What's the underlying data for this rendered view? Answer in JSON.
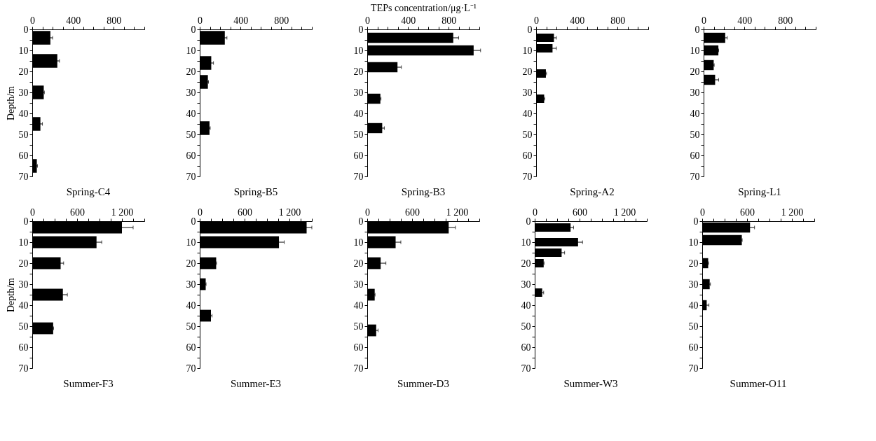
{
  "chart_data": [
    {
      "type": "bar",
      "orientation": "horizontal",
      "title": "Spring-C4",
      "ylabel": "Depth/m",
      "color": "#000000",
      "x": [
        4,
        15,
        30,
        45,
        65
      ],
      "values": [
        178,
        246,
        113,
        80,
        45
      ],
      "errors": [
        22,
        21,
        6,
        20,
        6
      ],
      "xlim": [
        0,
        1100
      ],
      "xticks": [
        0,
        {
          "value": 100,
          "label": null
        },
        {
          "value": 200,
          "label": null
        },
        {
          "value": 300,
          "label": null
        },
        400,
        {
          "value": 500,
          "label": null
        },
        {
          "value": 600,
          "label": null
        },
        {
          "value": 700,
          "label": null
        },
        800,
        {
          "value": 900,
          "label": null
        },
        {
          "value": 1000,
          "label": null
        },
        {
          "value": 1100,
          "label": null
        }
      ],
      "ylim": [
        70,
        0
      ],
      "yticks": [
        0,
        {
          "value": 5,
          "label": null
        },
        10,
        {
          "value": 15,
          "label": null
        },
        20,
        {
          "value": 25,
          "label": null
        },
        30,
        {
          "value": 35,
          "label": null
        },
        40,
        {
          "value": 45,
          "label": null
        },
        50,
        {
          "value": 55,
          "label": null
        },
        60,
        {
          "value": 65,
          "label": null
        },
        70
      ]
    },
    {
      "type": "bar",
      "orientation": "horizontal",
      "title": "Spring-B5",
      "color": "#000000",
      "x": [
        4,
        16,
        25,
        47
      ],
      "values": [
        246,
        113,
        80,
        96
      ],
      "errors": [
        21,
        22,
        6,
        7
      ],
      "xlim": [
        0,
        1100
      ],
      "xticks": [
        0,
        {
          "value": 100,
          "label": null
        },
        {
          "value": 200,
          "label": null
        },
        {
          "value": 300,
          "label": null
        },
        400,
        {
          "value": 500,
          "label": null
        },
        {
          "value": 600,
          "label": null
        },
        {
          "value": 700,
          "label": null
        },
        800,
        {
          "value": 900,
          "label": null
        },
        {
          "value": 1000,
          "label": null
        },
        {
          "value": 1100,
          "label": null
        }
      ],
      "ylim": [
        70,
        0
      ],
      "yticks": [
        0,
        {
          "value": 5,
          "label": null
        },
        10,
        {
          "value": 15,
          "label": null
        },
        20,
        {
          "value": 25,
          "label": null
        },
        30,
        {
          "value": 35,
          "label": null
        },
        40,
        {
          "value": 45,
          "label": null
        },
        50,
        {
          "value": 55,
          "label": null
        },
        60,
        {
          "value": 65,
          "label": null
        },
        70
      ]
    },
    {
      "type": "bar",
      "orientation": "horizontal",
      "title": "Spring-B3",
      "xlabel": "TEPs concentration/μg·L⁻¹",
      "color": "#000000",
      "x": [
        4,
        10,
        18,
        33,
        47
      ],
      "values": [
        844,
        1044,
        297,
        129,
        147
      ],
      "errors": [
        53,
        68,
        38,
        6,
        21
      ],
      "xlim": [
        0,
        1100
      ],
      "xticks": [
        0,
        {
          "value": 100,
          "label": null
        },
        {
          "value": 200,
          "label": null
        },
        {
          "value": 300,
          "label": null
        },
        400,
        {
          "value": 500,
          "label": null
        },
        {
          "value": 600,
          "label": null
        },
        {
          "value": 700,
          "label": null
        },
        800,
        {
          "value": 900,
          "label": null
        },
        {
          "value": 1000,
          "label": null
        },
        {
          "value": 1100,
          "label": null
        }
      ],
      "ylim": [
        70,
        0
      ],
      "yticks": [
        0,
        {
          "value": 5,
          "label": null
        },
        10,
        {
          "value": 15,
          "label": null
        },
        20,
        {
          "value": 25,
          "label": null
        },
        30,
        {
          "value": 35,
          "label": null
        },
        40,
        {
          "value": 45,
          "label": null
        },
        50,
        {
          "value": 55,
          "label": null
        },
        60,
        {
          "value": 65,
          "label": null
        },
        70
      ]
    },
    {
      "type": "bar",
      "orientation": "horizontal",
      "title": "Spring-A2",
      "color": "#000000",
      "x": [
        4,
        9,
        21,
        33
      ],
      "values": [
        175,
        161,
        96,
        79
      ],
      "errors": [
        24,
        38,
        6,
        6
      ],
      "xlim": [
        0,
        1100
      ],
      "xticks": [
        0,
        {
          "value": 100,
          "label": null
        },
        {
          "value": 200,
          "label": null
        },
        {
          "value": 300,
          "label": null
        },
        400,
        {
          "value": 500,
          "label": null
        },
        {
          "value": 600,
          "label": null
        },
        {
          "value": 700,
          "label": null
        },
        800,
        {
          "value": 900,
          "label": null
        },
        {
          "value": 1000,
          "label": null
        },
        {
          "value": 1100,
          "label": null
        }
      ],
      "ylim": [
        70,
        0
      ],
      "yticks": [
        0,
        {
          "value": 5,
          "label": null
        },
        10,
        {
          "value": 15,
          "label": null
        },
        20,
        {
          "value": 25,
          "label": null
        },
        30,
        {
          "value": 35,
          "label": null
        },
        40,
        {
          "value": 45,
          "label": null
        },
        50,
        {
          "value": 55,
          "label": null
        },
        60,
        {
          "value": 65,
          "label": null
        },
        70
      ]
    },
    {
      "type": "bar",
      "orientation": "horizontal",
      "title": "Spring-L1",
      "color": "#000000",
      "x": [
        4,
        10,
        17,
        24
      ],
      "values": [
        212,
        145,
        99,
        113
      ],
      "errors": [
        20,
        3,
        5,
        35
      ],
      "xlim": [
        0,
        1100
      ],
      "xticks": [
        0,
        {
          "value": 100,
          "label": null
        },
        {
          "value": 200,
          "label": null
        },
        {
          "value": 300,
          "label": null
        },
        400,
        {
          "value": 500,
          "label": null
        },
        {
          "value": 600,
          "label": null
        },
        {
          "value": 700,
          "label": null
        },
        800,
        {
          "value": 900,
          "label": null
        },
        {
          "value": 1000,
          "label": null
        },
        {
          "value": 1100,
          "label": null
        }
      ],
      "ylim": [
        70,
        0
      ],
      "yticks": [
        0,
        {
          "value": 5,
          "label": null
        },
        10,
        {
          "value": 15,
          "label": null
        },
        20,
        {
          "value": 25,
          "label": null
        },
        30,
        {
          "value": 35,
          "label": null
        },
        40,
        {
          "value": 45,
          "label": null
        },
        50,
        {
          "value": 55,
          "label": null
        },
        60,
        {
          "value": 65,
          "label": null
        },
        70
      ]
    },
    {
      "type": "bar",
      "orientation": "horizontal",
      "title": "Summer-F3",
      "ylabel": "Depth/m",
      "color": "#000000",
      "x": [
        3,
        10,
        20,
        35,
        51
      ],
      "values": [
        1200,
        860,
        380,
        410,
        280
      ],
      "errors": [
        150,
        70,
        40,
        60,
        5
      ],
      "xlim": [
        0,
        1500
      ],
      "xticks": [
        0,
        {
          "value": 150,
          "label": null
        },
        {
          "value": 300,
          "label": null
        },
        {
          "value": 450,
          "label": null
        },
        600,
        {
          "value": 750,
          "label": null
        },
        {
          "value": 900,
          "label": null
        },
        {
          "value": 1050,
          "label": null
        },
        {
          "value": 1200,
          "label": "1 200"
        },
        {
          "value": 1350,
          "label": null
        },
        {
          "value": 1500,
          "label": null
        }
      ],
      "ylim": [
        70,
        0
      ],
      "yticks": [
        0,
        {
          "value": 5,
          "label": null
        },
        10,
        {
          "value": 15,
          "label": null
        },
        20,
        {
          "value": 25,
          "label": null
        },
        30,
        {
          "value": 35,
          "label": null
        },
        40,
        {
          "value": 45,
          "label": null
        },
        50,
        {
          "value": 55,
          "label": null
        },
        60,
        {
          "value": 65,
          "label": null
        },
        70
      ]
    },
    {
      "type": "bar",
      "orientation": "horizontal",
      "title": "Summer-E3",
      "color": "#000000",
      "x": [
        3,
        10,
        20,
        30,
        45
      ],
      "values": [
        1430,
        1060,
        220,
        80,
        150
      ],
      "errors": [
        70,
        70,
        5,
        5,
        15
      ],
      "xlim": [
        0,
        1500
      ],
      "xticks": [
        0,
        {
          "value": 150,
          "label": null
        },
        {
          "value": 300,
          "label": null
        },
        {
          "value": 450,
          "label": null
        },
        600,
        {
          "value": 750,
          "label": null
        },
        {
          "value": 900,
          "label": null
        },
        {
          "value": 1050,
          "label": null
        },
        {
          "value": 1200,
          "label": "1 200"
        },
        {
          "value": 1350,
          "label": null
        },
        {
          "value": 1500,
          "label": null
        }
      ],
      "ylim": [
        70,
        0
      ],
      "yticks": [
        0,
        {
          "value": 5,
          "label": null
        },
        10,
        {
          "value": 15,
          "label": null
        },
        20,
        {
          "value": 25,
          "label": null
        },
        30,
        {
          "value": 35,
          "label": null
        },
        40,
        {
          "value": 45,
          "label": null
        },
        50,
        {
          "value": 55,
          "label": null
        },
        60,
        {
          "value": 65,
          "label": null
        },
        70
      ]
    },
    {
      "type": "bar",
      "orientation": "horizontal",
      "title": "Summer-D3",
      "color": "#000000",
      "x": [
        3,
        10,
        20,
        35,
        52
      ],
      "values": [
        1090,
        380,
        180,
        100,
        120
      ],
      "errors": [
        90,
        70,
        70,
        5,
        25
      ],
      "xlim": [
        0,
        1500
      ],
      "xticks": [
        0,
        {
          "value": 150,
          "label": null
        },
        {
          "value": 300,
          "label": null
        },
        {
          "value": 450,
          "label": null
        },
        600,
        {
          "value": 750,
          "label": null
        },
        {
          "value": 900,
          "label": null
        },
        {
          "value": 1050,
          "label": null
        },
        {
          "value": 1200,
          "label": "1 200"
        },
        {
          "value": 1350,
          "label": null
        },
        {
          "value": 1500,
          "label": null
        }
      ],
      "ylim": [
        70,
        0
      ],
      "yticks": [
        0,
        {
          "value": 5,
          "label": null
        },
        10,
        {
          "value": 15,
          "label": null
        },
        20,
        {
          "value": 25,
          "label": null
        },
        30,
        {
          "value": 35,
          "label": null
        },
        40,
        {
          "value": 45,
          "label": null
        },
        50,
        {
          "value": 55,
          "label": null
        },
        60,
        {
          "value": 65,
          "label": null
        },
        70
      ]
    },
    {
      "type": "bar",
      "orientation": "horizontal",
      "title": "Summer-W3",
      "color": "#000000",
      "x": [
        3,
        10,
        15,
        20,
        34
      ],
      "values": [
        480,
        580,
        360,
        120,
        100
      ],
      "errors": [
        40,
        60,
        40,
        5,
        20
      ],
      "xlim": [
        0,
        1500
      ],
      "xticks": [
        0,
        {
          "value": 150,
          "label": null
        },
        {
          "value": 300,
          "label": null
        },
        {
          "value": 450,
          "label": null
        },
        600,
        {
          "value": 750,
          "label": null
        },
        {
          "value": 900,
          "label": null
        },
        {
          "value": 1050,
          "label": null
        },
        {
          "value": 1200,
          "label": "1 200"
        },
        {
          "value": 1350,
          "label": null
        },
        {
          "value": 1500,
          "label": null
        }
      ],
      "ylim": [
        70,
        0
      ],
      "yticks": [
        0,
        {
          "value": 5,
          "label": null
        },
        10,
        {
          "value": 15,
          "label": null
        },
        20,
        {
          "value": 25,
          "label": null
        },
        30,
        {
          "value": 35,
          "label": null
        },
        40,
        {
          "value": 45,
          "label": null
        },
        50,
        {
          "value": 55,
          "label": null
        },
        60,
        {
          "value": 65,
          "label": null
        },
        70
      ]
    },
    {
      "type": "bar",
      "orientation": "horizontal",
      "title": "Summer-O11",
      "color": "#000000",
      "x": [
        3,
        9,
        20,
        30,
        40
      ],
      "values": [
        640,
        530,
        80,
        100,
        60
      ],
      "errors": [
        60,
        5,
        5,
        10,
        30
      ],
      "xlim": [
        0,
        1500
      ],
      "xticks": [
        0,
        {
          "value": 150,
          "label": null
        },
        {
          "value": 300,
          "label": null
        },
        {
          "value": 450,
          "label": null
        },
        600,
        {
          "value": 750,
          "label": null
        },
        {
          "value": 900,
          "label": null
        },
        {
          "value": 1050,
          "label": null
        },
        {
          "value": 1200,
          "label": "1 200"
        },
        {
          "value": 1350,
          "label": null
        },
        {
          "value": 1500,
          "label": null
        }
      ],
      "ylim": [
        70,
        0
      ],
      "yticks": [
        0,
        {
          "value": 5,
          "label": null
        },
        10,
        {
          "value": 15,
          "label": null
        },
        20,
        {
          "value": 25,
          "label": null
        },
        30,
        {
          "value": 35,
          "label": null
        },
        40,
        {
          "value": 45,
          "label": null
        },
        50,
        {
          "value": 55,
          "label": null
        },
        60,
        {
          "value": 65,
          "label": null
        },
        70
      ]
    }
  ]
}
